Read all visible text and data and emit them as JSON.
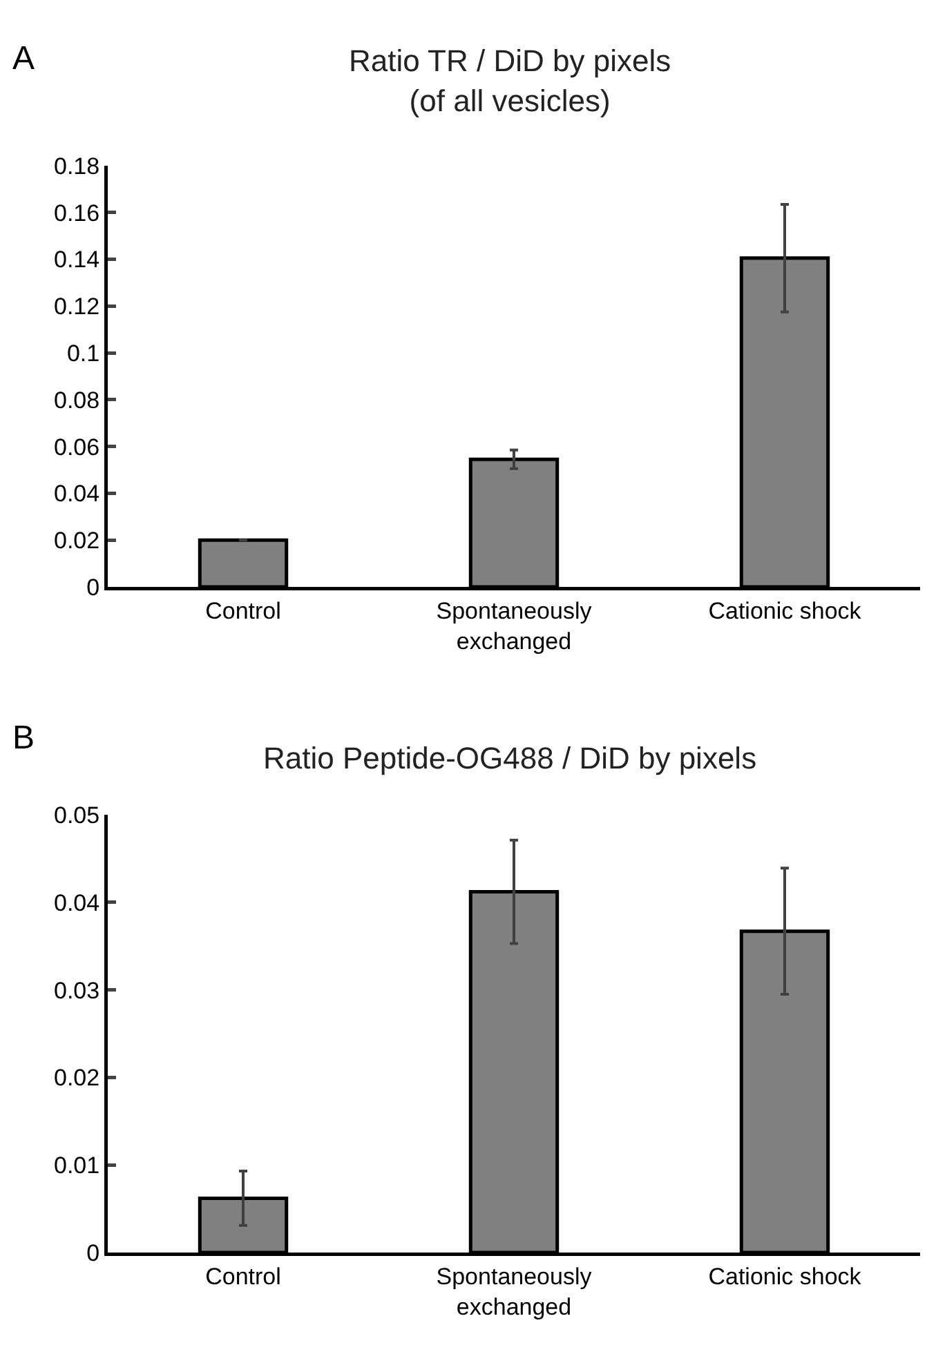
{
  "chart_data": [
    {
      "type": "bar",
      "title": "Ratio TR / DiD by pixels\n(of all vesicles)",
      "annotations": [
        "A"
      ],
      "categories": [
        "Control",
        "Spontaneously exchanged",
        "Cationic shock"
      ],
      "values": [
        0.02,
        0.0545,
        0.1405
      ],
      "errors": [
        null,
        0.004,
        0.023
      ],
      "color": "#808080",
      "ylim": [
        0,
        0.18
      ],
      "yticks": [
        0,
        0.02,
        0.04,
        0.06,
        0.08,
        0.1,
        0.12,
        0.14,
        0.16,
        0.18
      ],
      "grid": false
    },
    {
      "type": "bar",
      "title": "Ratio Peptide-OG488 / DiD by pixels",
      "annotations": [
        "B"
      ],
      "categories": [
        "Control",
        "Spontaneously exchanged",
        "Cationic shock"
      ],
      "values": [
        0.0062,
        0.0412,
        0.0367
      ],
      "errors": [
        0.0031,
        0.0059,
        0.0072
      ],
      "color": "#808080",
      "ylim": [
        0,
        0.05
      ],
      "yticks": [
        0,
        0.01,
        0.02,
        0.03,
        0.04,
        0.05
      ],
      "grid": false
    }
  ]
}
